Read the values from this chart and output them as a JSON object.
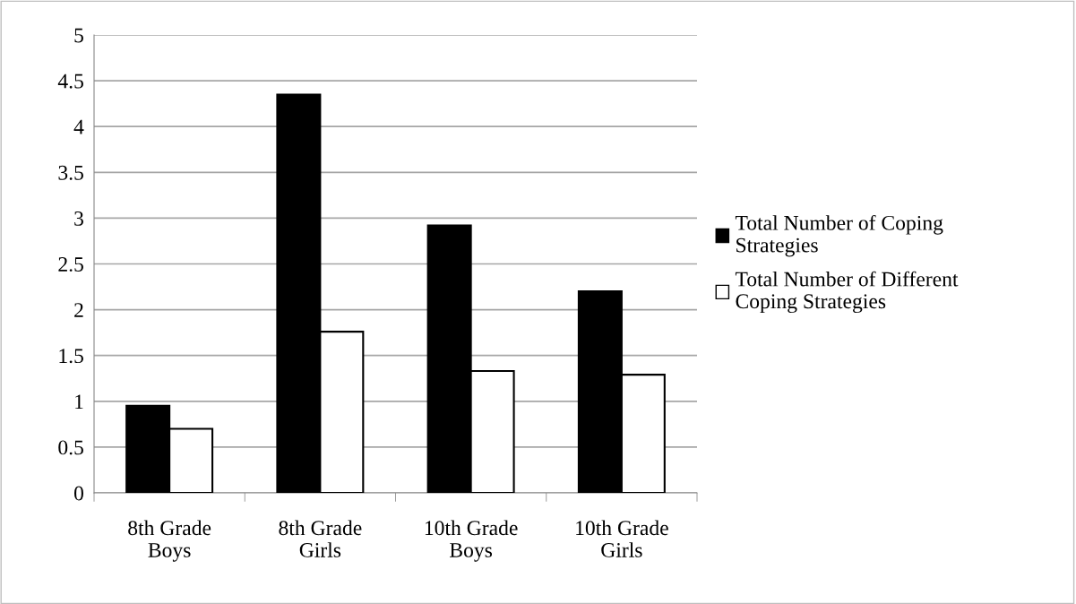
{
  "chart_data": {
    "type": "bar",
    "categories": [
      "8th Grade\nBoys",
      "8th Grade\nGirls",
      "10th Grade\nBoys",
      "10th Grade\nGirls"
    ],
    "series": [
      {
        "name": "Total Number of Coping\nStrategies",
        "color": "#000000",
        "values": [
          0.95,
          4.35,
          2.92,
          2.2
        ]
      },
      {
        "name": "Total Number of Different\nCoping Strategies",
        "color": "#ffffff",
        "values": [
          0.7,
          1.76,
          1.33,
          1.29
        ]
      }
    ],
    "ylim": [
      0,
      5
    ],
    "yticks": [
      0,
      0.5,
      1,
      1.5,
      2,
      2.5,
      3,
      3.5,
      4,
      4.5,
      5
    ],
    "grid": "y",
    "legend": "right"
  }
}
